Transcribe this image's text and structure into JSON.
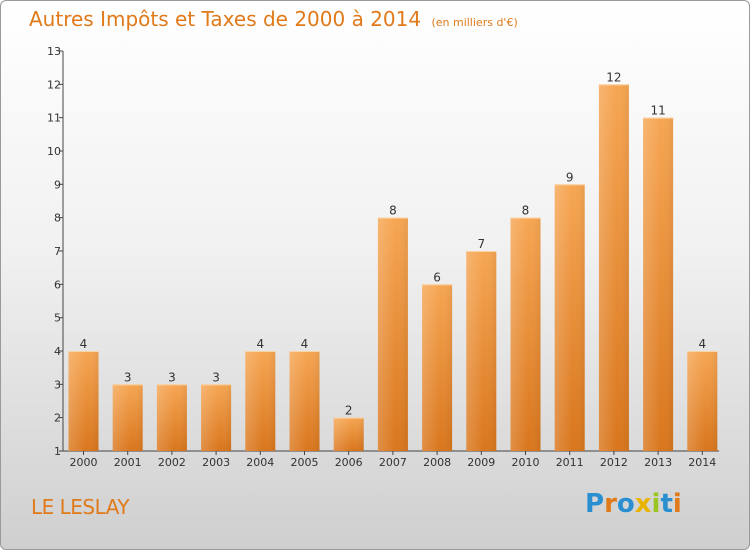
{
  "title": {
    "main": "Autres Impôts et Taxes de 2000 à 2014",
    "unit": "(en milliers d'€)"
  },
  "place": "LE LESLAY",
  "logo": {
    "letters": [
      "P",
      "r",
      "o",
      "x",
      "i",
      "t",
      "i"
    ],
    "colors": [
      "#2a8fd0",
      "#e07a1a",
      "#2a8fd0",
      "#e8b400",
      "#9ac520",
      "#2a8fd0",
      "#e07a1a"
    ]
  },
  "colors": {
    "title": "#e07a1a",
    "bar_light": "#f6a653",
    "bar_dark": "#d9761d"
  },
  "chart_data": {
    "type": "bar",
    "categories": [
      "2000",
      "2001",
      "2002",
      "2003",
      "2004",
      "2005",
      "2006",
      "2007",
      "2008",
      "2009",
      "2010",
      "2011",
      "2012",
      "2013",
      "2014"
    ],
    "values": [
      4,
      3,
      3,
      3,
      4,
      4,
      2,
      8,
      6,
      7,
      8,
      9,
      12,
      11,
      4
    ],
    "ylim": [
      1,
      13
    ],
    "yticks": [
      1,
      2,
      3,
      4,
      5,
      6,
      7,
      8,
      9,
      10,
      11,
      12,
      13
    ],
    "grid": false,
    "legend": "none"
  }
}
